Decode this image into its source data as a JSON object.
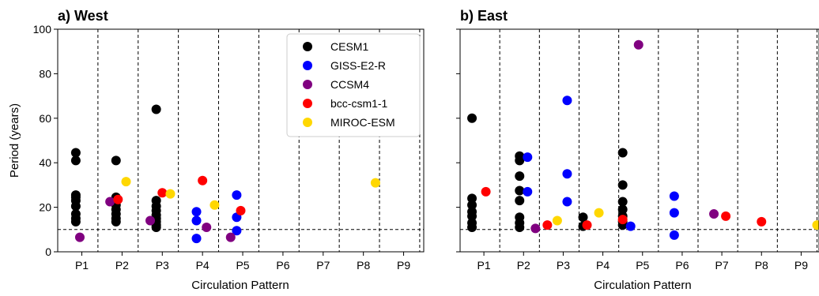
{
  "chart_data": [
    {
      "type": "scatter",
      "title": "a) West",
      "xlabel": "Circulation Pattern",
      "ylabel": "Period (years)",
      "ylim": [
        0,
        100
      ],
      "yticks": [
        0,
        20,
        40,
        60,
        80,
        100
      ],
      "categories": [
        "P1",
        "P2",
        "P3",
        "P4",
        "P5",
        "P6",
        "P7",
        "P8",
        "P9"
      ],
      "reference_line_y": 10,
      "legend_location": "top-right",
      "series": [
        {
          "name": "CESM1",
          "color": "#000000",
          "points": [
            [
              0.45,
              44.5
            ],
            [
              0.45,
              41
            ],
            [
              0.45,
              25.5
            ],
            [
              0.45,
              24.5
            ],
            [
              0.45,
              23
            ],
            [
              0.45,
              20.5
            ],
            [
              0.45,
              17
            ],
            [
              0.45,
              15
            ],
            [
              0.45,
              13.5
            ],
            [
              1.45,
              41
            ],
            [
              1.45,
              24.5
            ],
            [
              1.45,
              23
            ],
            [
              1.45,
              21
            ],
            [
              1.45,
              19
            ],
            [
              1.45,
              17
            ],
            [
              1.45,
              15
            ],
            [
              1.45,
              13.5
            ],
            [
              2.45,
              64
            ],
            [
              2.45,
              23
            ],
            [
              2.45,
              20.5
            ],
            [
              2.45,
              18.5
            ],
            [
              2.45,
              16.5
            ],
            [
              2.45,
              15
            ],
            [
              2.45,
              13.5
            ],
            [
              2.45,
              12
            ],
            [
              2.45,
              11
            ]
          ]
        },
        {
          "name": "GISS-E2-R",
          "color": "#0000ff",
          "points": [
            [
              3.45,
              18
            ],
            [
              3.45,
              14
            ],
            [
              3.45,
              6
            ],
            [
              4.45,
              25.5
            ],
            [
              4.45,
              15.5
            ],
            [
              4.45,
              9.5
            ]
          ]
        },
        {
          "name": "CCSM4",
          "color": "#800080",
          "points": [
            [
              0.55,
              6.5
            ],
            [
              1.3,
              22.5
            ],
            [
              2.3,
              14
            ],
            [
              3.7,
              11
            ],
            [
              4.3,
              6.5
            ]
          ]
        },
        {
          "name": "bcc-csm1-1",
          "color": "#ff0000",
          "points": [
            [
              1.5,
              23.5
            ],
            [
              2.6,
              26.5
            ],
            [
              3.6,
              32
            ],
            [
              4.55,
              18.5
            ]
          ]
        },
        {
          "name": "MIROC-ESM",
          "color": "#ffd700",
          "points": [
            [
              1.7,
              31.5
            ],
            [
              2.8,
              26
            ],
            [
              3.9,
              21
            ],
            [
              7.9,
              31
            ]
          ]
        }
      ]
    },
    {
      "type": "scatter",
      "title": "b) East",
      "xlabel": "Circulation Pattern",
      "ylim": [
        0,
        100
      ],
      "categories": [
        "P1",
        "P2",
        "P3",
        "P4",
        "P5",
        "P6",
        "P7",
        "P8",
        "P9"
      ],
      "reference_line_y": 10,
      "series": [
        {
          "name": "CESM1",
          "color": "#000000",
          "points": [
            [
              0.3,
              60
            ],
            [
              0.3,
              24
            ],
            [
              0.3,
              21
            ],
            [
              0.3,
              18
            ],
            [
              0.3,
              16
            ],
            [
              0.3,
              13
            ],
            [
              0.3,
              11
            ],
            [
              1.5,
              43
            ],
            [
              1.5,
              41
            ],
            [
              1.5,
              34
            ],
            [
              1.5,
              27.5
            ],
            [
              1.5,
              23
            ],
            [
              1.5,
              15.5
            ],
            [
              1.5,
              13
            ],
            [
              1.5,
              11
            ],
            [
              3.1,
              15.5
            ],
            [
              3.1,
              11.5
            ],
            [
              4.1,
              44.5
            ],
            [
              4.1,
              30
            ],
            [
              4.1,
              22.5
            ],
            [
              4.1,
              19
            ],
            [
              4.1,
              16
            ],
            [
              4.1,
              13.5
            ],
            [
              4.1,
              12
            ]
          ]
        },
        {
          "name": "GISS-E2-R",
          "color": "#0000ff",
          "points": [
            [
              1.7,
              42.5
            ],
            [
              1.7,
              27
            ],
            [
              2.7,
              68
            ],
            [
              2.7,
              35
            ],
            [
              2.7,
              22.5
            ],
            [
              4.3,
              11.5
            ],
            [
              5.4,
              25
            ],
            [
              5.4,
              17.5
            ],
            [
              5.4,
              7.5
            ]
          ]
        },
        {
          "name": "CCSM4",
          "color": "#800080",
          "points": [
            [
              1.9,
              10.5
            ],
            [
              4.5,
              93
            ],
            [
              6.4,
              17
            ]
          ]
        },
        {
          "name": "bcc-csm1-1",
          "color": "#ff0000",
          "points": [
            [
              0.65,
              27
            ],
            [
              2.2,
              12
            ],
            [
              3.2,
              12
            ],
            [
              4.1,
              14.5
            ],
            [
              6.7,
              16
            ],
            [
              7.6,
              13.5
            ]
          ]
        },
        {
          "name": "MIROC-ESM",
          "color": "#ffd700",
          "points": [
            [
              2.45,
              14
            ],
            [
              3.5,
              17.5
            ],
            [
              9.0,
              12
            ]
          ]
        }
      ]
    }
  ]
}
